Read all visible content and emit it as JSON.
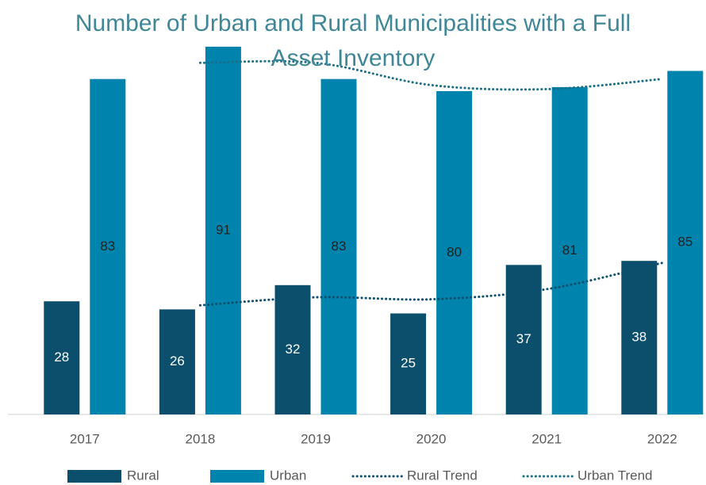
{
  "chart_data": {
    "type": "bar",
    "title": "Number of Urban and Rural Municipalities with a Full Asset Inventory",
    "categories": [
      "2017",
      "2018",
      "2019",
      "2020",
      "2021",
      "2022"
    ],
    "ylim": [
      0,
      100
    ],
    "series": [
      {
        "name": "Rural",
        "color": "#0b4f6c",
        "values": [
          28,
          26,
          32,
          25,
          37,
          38
        ]
      },
      {
        "name": "Urban",
        "color": "#0083ad",
        "values": [
          83,
          91,
          83,
          80,
          81,
          85
        ]
      },
      {
        "name": "Rural Trend",
        "type": "line",
        "color": "#0b4f6c",
        "values": [
          null,
          27,
          29,
          28.5,
          31,
          37.5
        ]
      },
      {
        "name": "Urban Trend",
        "type": "line",
        "color": "#1a6f86",
        "values": [
          null,
          87,
          87,
          81.5,
          80.5,
          83
        ]
      }
    ]
  }
}
